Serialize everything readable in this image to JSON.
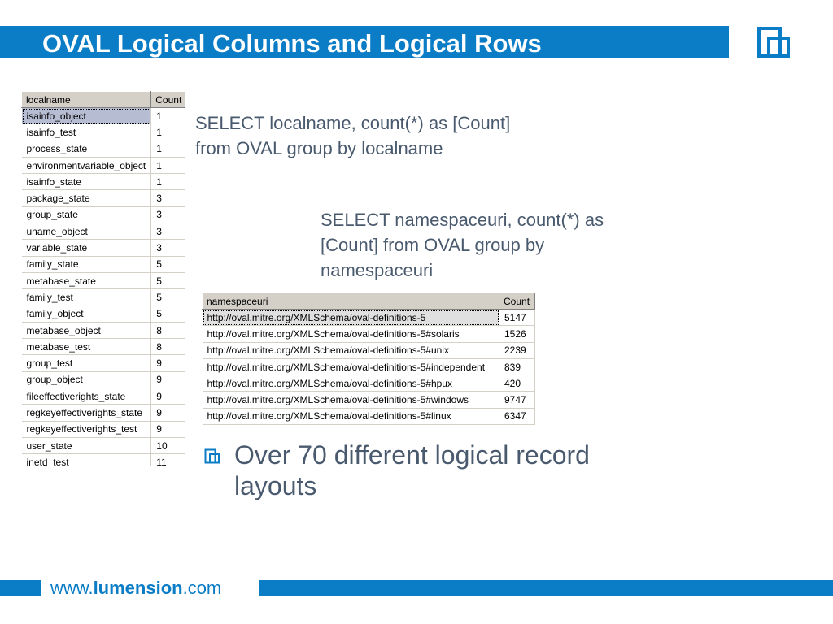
{
  "colors": {
    "accent": "#0b7dc6"
  },
  "title": "OVAL Logical Columns and Logical Rows",
  "logo_icon": "nested-squares-logo",
  "query1": [
    "SELECT localname, count(*) as [Count]",
    "from OVAL group by localname"
  ],
  "query2": [
    "SELECT namespaceuri, count(*) as",
    "[Count] from OVAL group by",
    "namespaceuri"
  ],
  "table1": {
    "headers": [
      "localname",
      "Count"
    ],
    "rows": [
      [
        "isainfo_object",
        "1"
      ],
      [
        "isainfo_test",
        "1"
      ],
      [
        "process_state",
        "1"
      ],
      [
        "environmentvariable_object",
        "1"
      ],
      [
        "isainfo_state",
        "1"
      ],
      [
        "package_state",
        "3"
      ],
      [
        "group_state",
        "3"
      ],
      [
        "uname_object",
        "3"
      ],
      [
        "variable_state",
        "3"
      ],
      [
        "family_state",
        "5"
      ],
      [
        "metabase_state",
        "5"
      ],
      [
        "family_test",
        "5"
      ],
      [
        "family_object",
        "5"
      ],
      [
        "metabase_object",
        "8"
      ],
      [
        "metabase_test",
        "8"
      ],
      [
        "group_test",
        "9"
      ],
      [
        "group_object",
        "9"
      ],
      [
        "fileeffectiverights_state",
        "9"
      ],
      [
        "regkeyeffectiverights_state",
        "9"
      ],
      [
        "regkeyeffectiverights_test",
        "9"
      ],
      [
        "user_state",
        "10"
      ],
      [
        "inetd_test",
        "11"
      ]
    ]
  },
  "table2": {
    "headers": [
      "namespaceuri",
      "Count"
    ],
    "rows": [
      [
        "http://oval.mitre.org/XMLSchema/oval-definitions-5",
        "5147"
      ],
      [
        "http://oval.mitre.org/XMLSchema/oval-definitions-5#solaris",
        "1526"
      ],
      [
        "http://oval.mitre.org/XMLSchema/oval-definitions-5#unix",
        "2239"
      ],
      [
        "http://oval.mitre.org/XMLSchema/oval-definitions-5#independent",
        "839"
      ],
      [
        "http://oval.mitre.org/XMLSchema/oval-definitions-5#hpux",
        "420"
      ],
      [
        "http://oval.mitre.org/XMLSchema/oval-definitions-5#windows",
        "9747"
      ],
      [
        "http://oval.mitre.org/XMLSchema/oval-definitions-5#linux",
        "6347"
      ]
    ]
  },
  "bullet": "Over 70 different logical record layouts",
  "footer": {
    "prefix": "www.",
    "brand": "lumension",
    "suffix": ".com"
  }
}
